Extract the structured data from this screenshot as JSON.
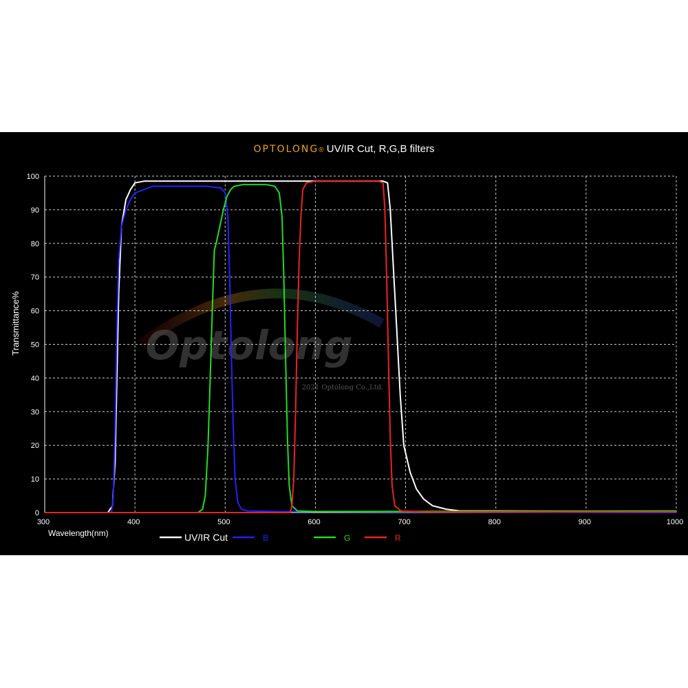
{
  "header": {
    "brand": "OPTOLONG",
    "brand_mark": "®",
    "title": "UV/IR Cut, R,G,B filters"
  },
  "watermark": {
    "logo": "Optolong",
    "copyright": "2021 Optolong Co.,Ltd."
  },
  "colors": {
    "background": "#000000",
    "grid": "#cfcfcf",
    "uvir": "#ffffff",
    "blue": "#2222ff",
    "green": "#22dd22",
    "red": "#ee2222",
    "brand": "#e8a21c"
  },
  "chart_data": {
    "type": "line",
    "title": "UV/IR Cut, R,G,B filters",
    "xlabel": "Wavelength(nm)",
    "ylabel": "Transmittance%",
    "xlim": [
      300,
      1000
    ],
    "ylim": [
      0,
      100
    ],
    "xticks": [
      300,
      400,
      500,
      600,
      700,
      800,
      900,
      1000
    ],
    "yticks": [
      0,
      10,
      20,
      30,
      40,
      50,
      60,
      70,
      80,
      90,
      100
    ],
    "grid": true,
    "legend_position": "bottom",
    "series": [
      {
        "name": "UV/IR Cut",
        "color": "#ffffff",
        "points": [
          [
            300,
            0
          ],
          [
            370,
            0
          ],
          [
            375,
            2
          ],
          [
            378,
            15
          ],
          [
            380,
            40
          ],
          [
            382,
            65
          ],
          [
            385,
            85
          ],
          [
            390,
            93
          ],
          [
            395,
            96
          ],
          [
            400,
            98
          ],
          [
            410,
            98.5
          ],
          [
            450,
            98.5
          ],
          [
            500,
            98.5
          ],
          [
            550,
            98.5
          ],
          [
            600,
            98.5
          ],
          [
            650,
            98.5
          ],
          [
            675,
            98.5
          ],
          [
            680,
            98
          ],
          [
            683,
            90
          ],
          [
            686,
            75
          ],
          [
            690,
            55
          ],
          [
            694,
            35
          ],
          [
            698,
            20
          ],
          [
            705,
            12
          ],
          [
            712,
            7
          ],
          [
            720,
            4
          ],
          [
            730,
            2
          ],
          [
            745,
            1
          ],
          [
            760,
            0.5
          ],
          [
            800,
            0.5
          ],
          [
            1000,
            0.3
          ]
        ]
      },
      {
        "name": "B",
        "color": "#2222ff",
        "points": [
          [
            300,
            0
          ],
          [
            374,
            0
          ],
          [
            376,
            5
          ],
          [
            378,
            25
          ],
          [
            380,
            55
          ],
          [
            382,
            75
          ],
          [
            385,
            85
          ],
          [
            390,
            90
          ],
          [
            395,
            93
          ],
          [
            400,
            95
          ],
          [
            410,
            96
          ],
          [
            420,
            97
          ],
          [
            450,
            97
          ],
          [
            480,
            97
          ],
          [
            495,
            96.5
          ],
          [
            500,
            95
          ],
          [
            503,
            88
          ],
          [
            505,
            70
          ],
          [
            507,
            45
          ],
          [
            509,
            25
          ],
          [
            511,
            10
          ],
          [
            514,
            3
          ],
          [
            518,
            1
          ],
          [
            525,
            0.5
          ],
          [
            560,
            0.3
          ],
          [
            1000,
            0
          ]
        ]
      },
      {
        "name": "G",
        "color": "#22dd22",
        "points": [
          [
            300,
            0
          ],
          [
            470,
            0
          ],
          [
            475,
            1
          ],
          [
            478,
            5
          ],
          [
            481,
            20
          ],
          [
            484,
            45
          ],
          [
            486,
            62
          ],
          [
            488,
            78
          ],
          [
            490,
            80
          ],
          [
            494,
            85
          ],
          [
            498,
            90
          ],
          [
            502,
            94
          ],
          [
            506,
            96
          ],
          [
            510,
            97
          ],
          [
            520,
            97.5
          ],
          [
            545,
            97.5
          ],
          [
            555,
            97
          ],
          [
            560,
            95
          ],
          [
            563,
            88
          ],
          [
            565,
            70
          ],
          [
            567,
            45
          ],
          [
            569,
            22
          ],
          [
            571,
            8
          ],
          [
            574,
            2
          ],
          [
            580,
            0.5
          ],
          [
            600,
            0.3
          ],
          [
            1000,
            0.5
          ]
        ]
      },
      {
        "name": "R",
        "color": "#ee2222",
        "points": [
          [
            300,
            0
          ],
          [
            572,
            0
          ],
          [
            574,
            2
          ],
          [
            576,
            10
          ],
          [
            578,
            30
          ],
          [
            580,
            55
          ],
          [
            582,
            75
          ],
          [
            584,
            88
          ],
          [
            586,
            96
          ],
          [
            590,
            98
          ],
          [
            600,
            98.5
          ],
          [
            650,
            98.5
          ],
          [
            670,
            98.5
          ],
          [
            675,
            98
          ],
          [
            677,
            90
          ],
          [
            679,
            70
          ],
          [
            681,
            45
          ],
          [
            683,
            22
          ],
          [
            685,
            8
          ],
          [
            688,
            2
          ],
          [
            695,
            0.5
          ],
          [
            720,
            0.2
          ],
          [
            1000,
            0.2
          ]
        ]
      }
    ]
  }
}
